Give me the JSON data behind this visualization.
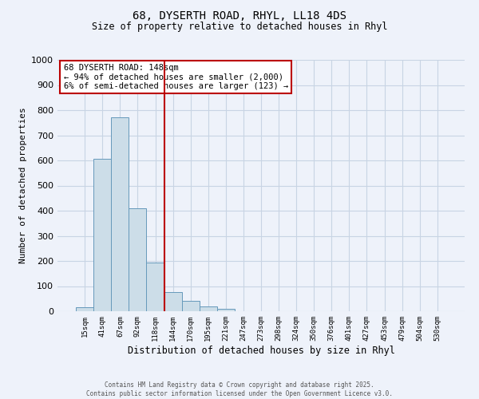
{
  "title": "68, DYSERTH ROAD, RHYL, LL18 4DS",
  "subtitle": "Size of property relative to detached houses in Rhyl",
  "xlabel": "Distribution of detached houses by size in Rhyl",
  "ylabel": "Number of detached properties",
  "bar_labels": [
    "15sqm",
    "41sqm",
    "67sqm",
    "92sqm",
    "118sqm",
    "144sqm",
    "170sqm",
    "195sqm",
    "221sqm",
    "247sqm",
    "273sqm",
    "298sqm",
    "324sqm",
    "350sqm",
    "376sqm",
    "401sqm",
    "427sqm",
    "453sqm",
    "479sqm",
    "504sqm",
    "530sqm"
  ],
  "bar_values": [
    15,
    605,
    770,
    410,
    195,
    75,
    40,
    18,
    10,
    0,
    0,
    0,
    0,
    0,
    0,
    0,
    0,
    0,
    0,
    0,
    0
  ],
  "bar_color": "#ccdde8",
  "bar_edgecolor": "#6699bb",
  "vline_x": 4.5,
  "vline_color": "#bb0000",
  "annotation_text": "68 DYSERTH ROAD: 148sqm\n← 94% of detached houses are smaller (2,000)\n6% of semi-detached houses are larger (123) →",
  "annotation_box_color": "#ffffff",
  "annotation_box_edgecolor": "#bb0000",
  "ylim": [
    0,
    1000
  ],
  "yticks": [
    0,
    100,
    200,
    300,
    400,
    500,
    600,
    700,
    800,
    900,
    1000
  ],
  "bg_color": "#eef2fa",
  "grid_color": "#c8d4e4",
  "footer_line1": "Contains HM Land Registry data © Crown copyright and database right 2025.",
  "footer_line2": "Contains public sector information licensed under the Open Government Licence v3.0."
}
